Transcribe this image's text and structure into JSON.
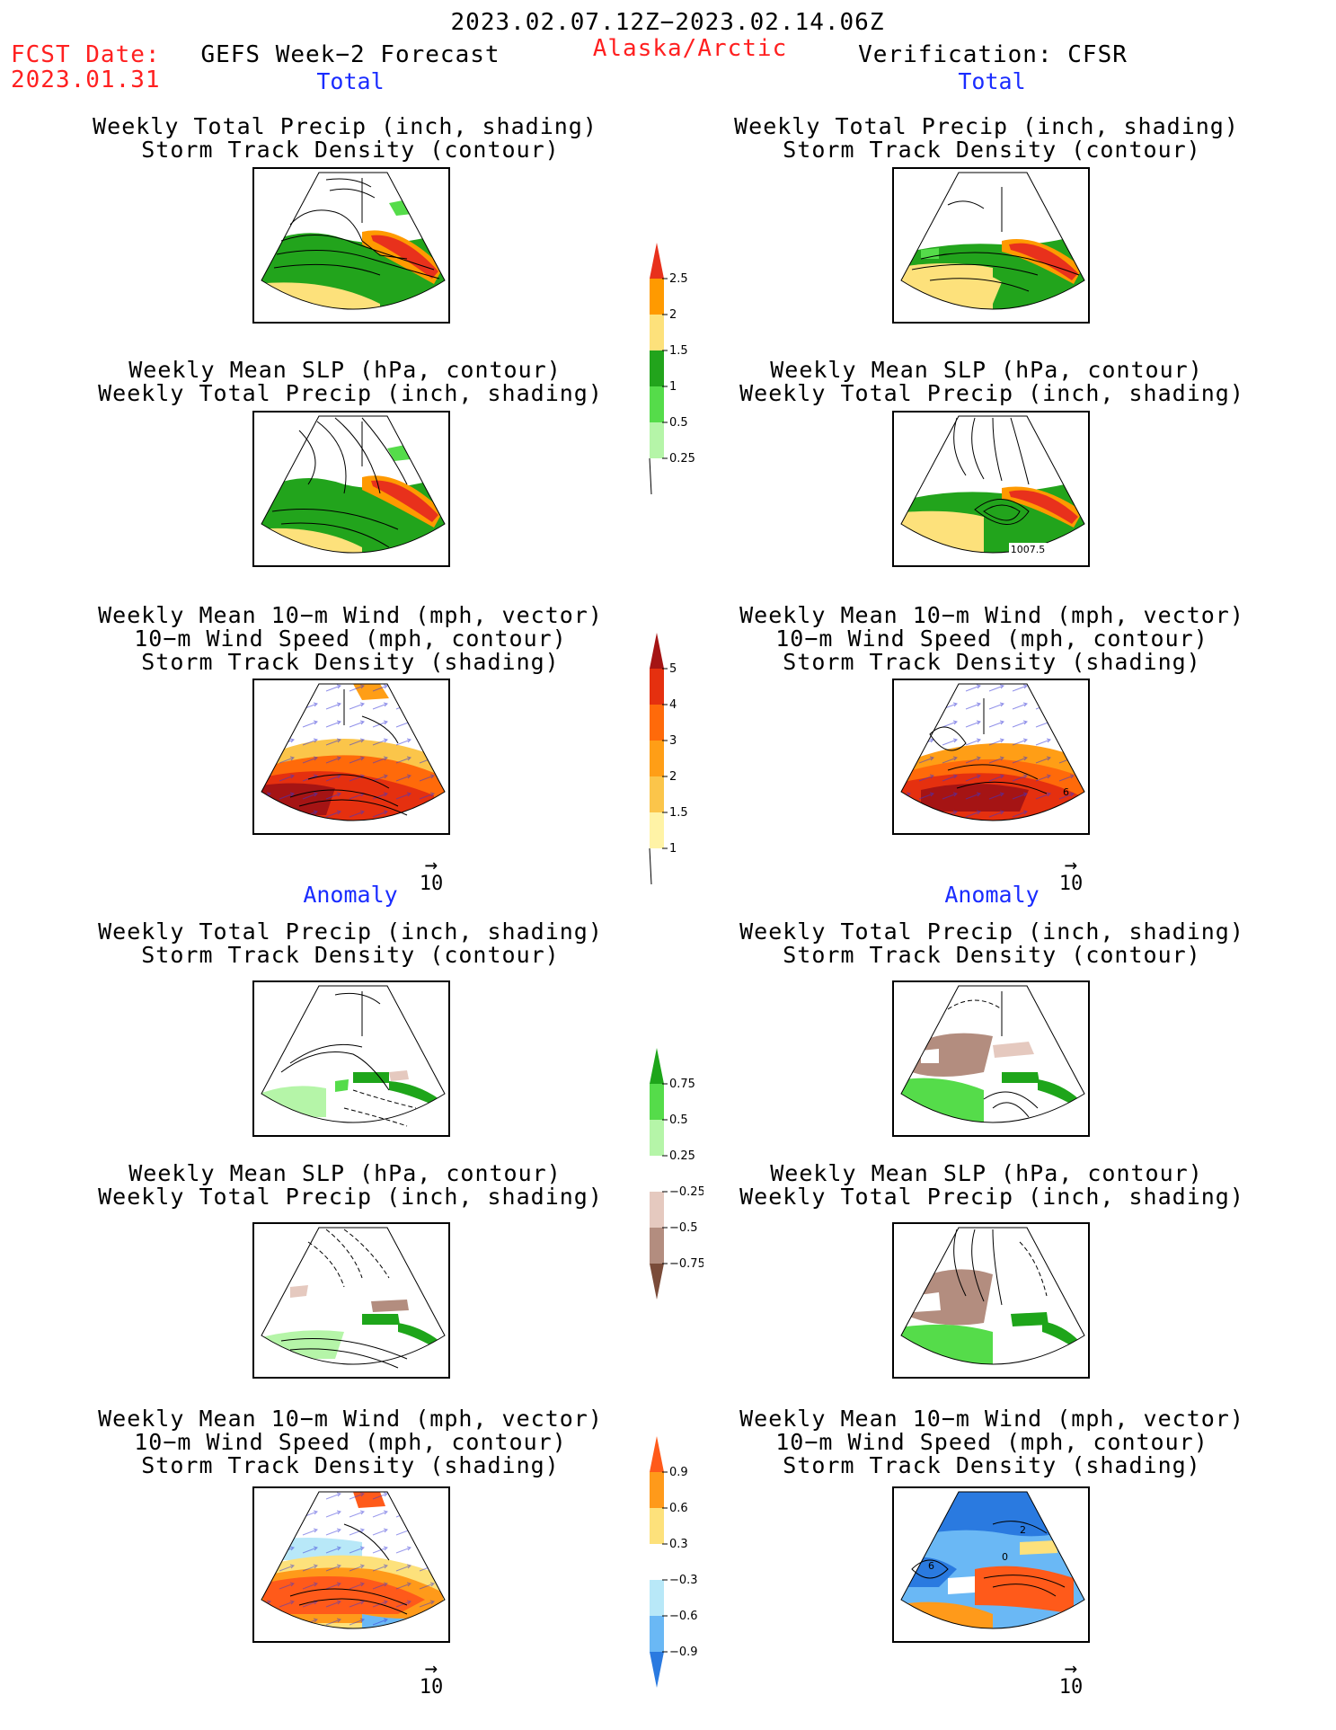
{
  "header": {
    "date_range": "2023.02.07.12Z−2023.02.14.06Z",
    "fcst_label": "FCST Date:",
    "fcst_date": "2023.01.31",
    "forecast_title": "GEFS Week−2 Forecast",
    "region": "Alaska/Arctic",
    "verification": "Verification: CFSR"
  },
  "sections": {
    "total": "Total",
    "anomaly": "Anomaly"
  },
  "titles": {
    "precip_storm": [
      "Weekly Total Precip (inch, shading)",
      "Storm Track Density (contour)"
    ],
    "slp_precip": [
      "Weekly Mean SLP (hPa, contour)",
      "Weekly Total Precip (inch, shading)"
    ],
    "wind_storm": [
      "Weekly Mean 10−m Wind (mph, vector)",
      "10−m Wind Speed (mph, contour)",
      "Storm Track Density (shading)"
    ]
  },
  "vector_key": "10",
  "map_annotations": {
    "slp_total_cfsr": "1007.5",
    "wind_total_cfsr": "6",
    "wind_anom_cfsr_a": "6",
    "wind_anom_cfsr_b": "2",
    "wind_anom_cfsr_c": "0"
  },
  "colorbars": {
    "precip_total": {
      "labels": [
        "2.5",
        "2",
        "1.5",
        "1",
        "0.5",
        "0.25"
      ],
      "colors": [
        "#e8311c",
        "#ff9a00",
        "#fde17b",
        "#22a41c",
        "#55dc4a",
        "#b5f5a8"
      ]
    },
    "storm_total": {
      "labels": [
        "5",
        "4",
        "3",
        "2",
        "1.5",
        "1"
      ],
      "colors": [
        "#a51414",
        "#e5300f",
        "#ff6a0a",
        "#ff9e16",
        "#fbc54a",
        "#fff3a6"
      ]
    },
    "precip_anom": {
      "labels": [
        "0.75",
        "0.5",
        "0.25",
        "−0.25",
        "−0.5",
        "−0.75"
      ],
      "colors": [
        "#1ea51a",
        "#55dc4a",
        "#b5f5a8",
        "#ffffff",
        "#e5c9bf",
        "#b38d7f",
        "#7a4b39"
      ]
    },
    "storm_anom": {
      "labels": [
        "0.9",
        "0.6",
        "0.3",
        "−0.3",
        "−0.6",
        "−0.9"
      ],
      "colors": [
        "#ff5a1a",
        "#ff9a1a",
        "#fde17b",
        "#ffffff",
        "#b8e8f8",
        "#6ab8f5",
        "#2a7ae0"
      ]
    }
  }
}
